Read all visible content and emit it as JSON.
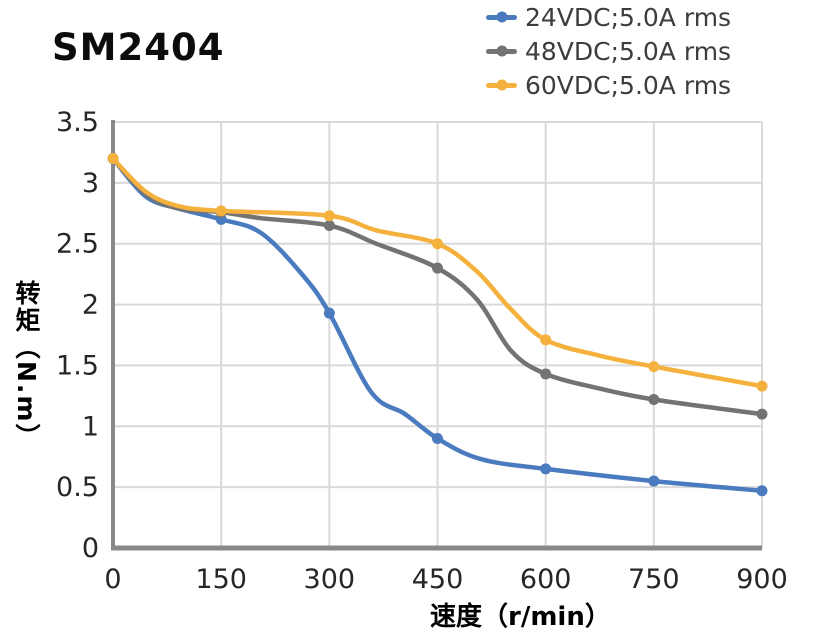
{
  "title": "SM2404",
  "legend": [
    {
      "label": "24VDC;5.0A rms",
      "color": "#4A7BBF"
    },
    {
      "label": "48VDC;5.0A rms",
      "color": "#737373"
    },
    {
      "label": "60VDC;5.0A rms",
      "color": "#F5B13D"
    }
  ],
  "colors": {
    "gridline": "#D9D9D9",
    "axis_line": "#898989",
    "tick_label": "#262626",
    "legend_text": "#3d3d3d"
  },
  "chart_data": {
    "type": "line",
    "title": "SM2404",
    "xlabel": "速度（r/min）",
    "ylabel": "转矩（N.m）",
    "xlim": [
      0,
      900
    ],
    "ylim": [
      0,
      3.5
    ],
    "x_tick_labels": [
      "0",
      "150",
      "300",
      "450",
      "600",
      "750",
      "900"
    ],
    "y_tick_labels": [
      "0",
      "0.5",
      "1",
      "1.5",
      "2",
      "2.5",
      "3",
      "3.5"
    ],
    "grid": true,
    "legend_position": "top-right",
    "x": [
      0,
      150,
      300,
      450,
      600,
      750,
      900
    ],
    "series": [
      {
        "name": "24VDC;5.0A rms",
        "color": "#4A7BBF",
        "values": [
          3.2,
          2.7,
          1.93,
          0.9,
          0.65,
          0.55,
          0.47
        ],
        "curve": [
          [
            0,
            3.2
          ],
          [
            45,
            2.89
          ],
          [
            90,
            2.79
          ],
          [
            150,
            2.7
          ],
          [
            205,
            2.59
          ],
          [
            262,
            2.25
          ],
          [
            300,
            1.93
          ],
          [
            358,
            1.28
          ],
          [
            405,
            1.1
          ],
          [
            450,
            0.9
          ],
          [
            510,
            0.73
          ],
          [
            600,
            0.65
          ],
          [
            750,
            0.55
          ],
          [
            900,
            0.47
          ]
        ]
      },
      {
        "name": "48VDC;5.0A rms",
        "color": "#737373",
        "values": [
          3.2,
          2.76,
          2.65,
          2.3,
          1.43,
          1.22,
          1.1
        ],
        "curve": [
          [
            0,
            3.2
          ],
          [
            45,
            2.91
          ],
          [
            90,
            2.79
          ],
          [
            150,
            2.76
          ],
          [
            205,
            2.71
          ],
          [
            300,
            2.65
          ],
          [
            365,
            2.5
          ],
          [
            450,
            2.3
          ],
          [
            505,
            2.04
          ],
          [
            552,
            1.62
          ],
          [
            600,
            1.43
          ],
          [
            675,
            1.31
          ],
          [
            750,
            1.22
          ],
          [
            900,
            1.1
          ]
        ]
      },
      {
        "name": "60VDC;5.0A rms",
        "color": "#F5B13D",
        "values": [
          3.2,
          2.77,
          2.73,
          2.5,
          1.71,
          1.49,
          1.33
        ],
        "curve": [
          [
            0,
            3.2
          ],
          [
            45,
            2.93
          ],
          [
            90,
            2.81
          ],
          [
            150,
            2.77
          ],
          [
            300,
            2.73
          ],
          [
            365,
            2.61
          ],
          [
            450,
            2.5
          ],
          [
            505,
            2.27
          ],
          [
            552,
            1.96
          ],
          [
            600,
            1.71
          ],
          [
            675,
            1.58
          ],
          [
            750,
            1.49
          ],
          [
            900,
            1.33
          ]
        ]
      }
    ]
  }
}
